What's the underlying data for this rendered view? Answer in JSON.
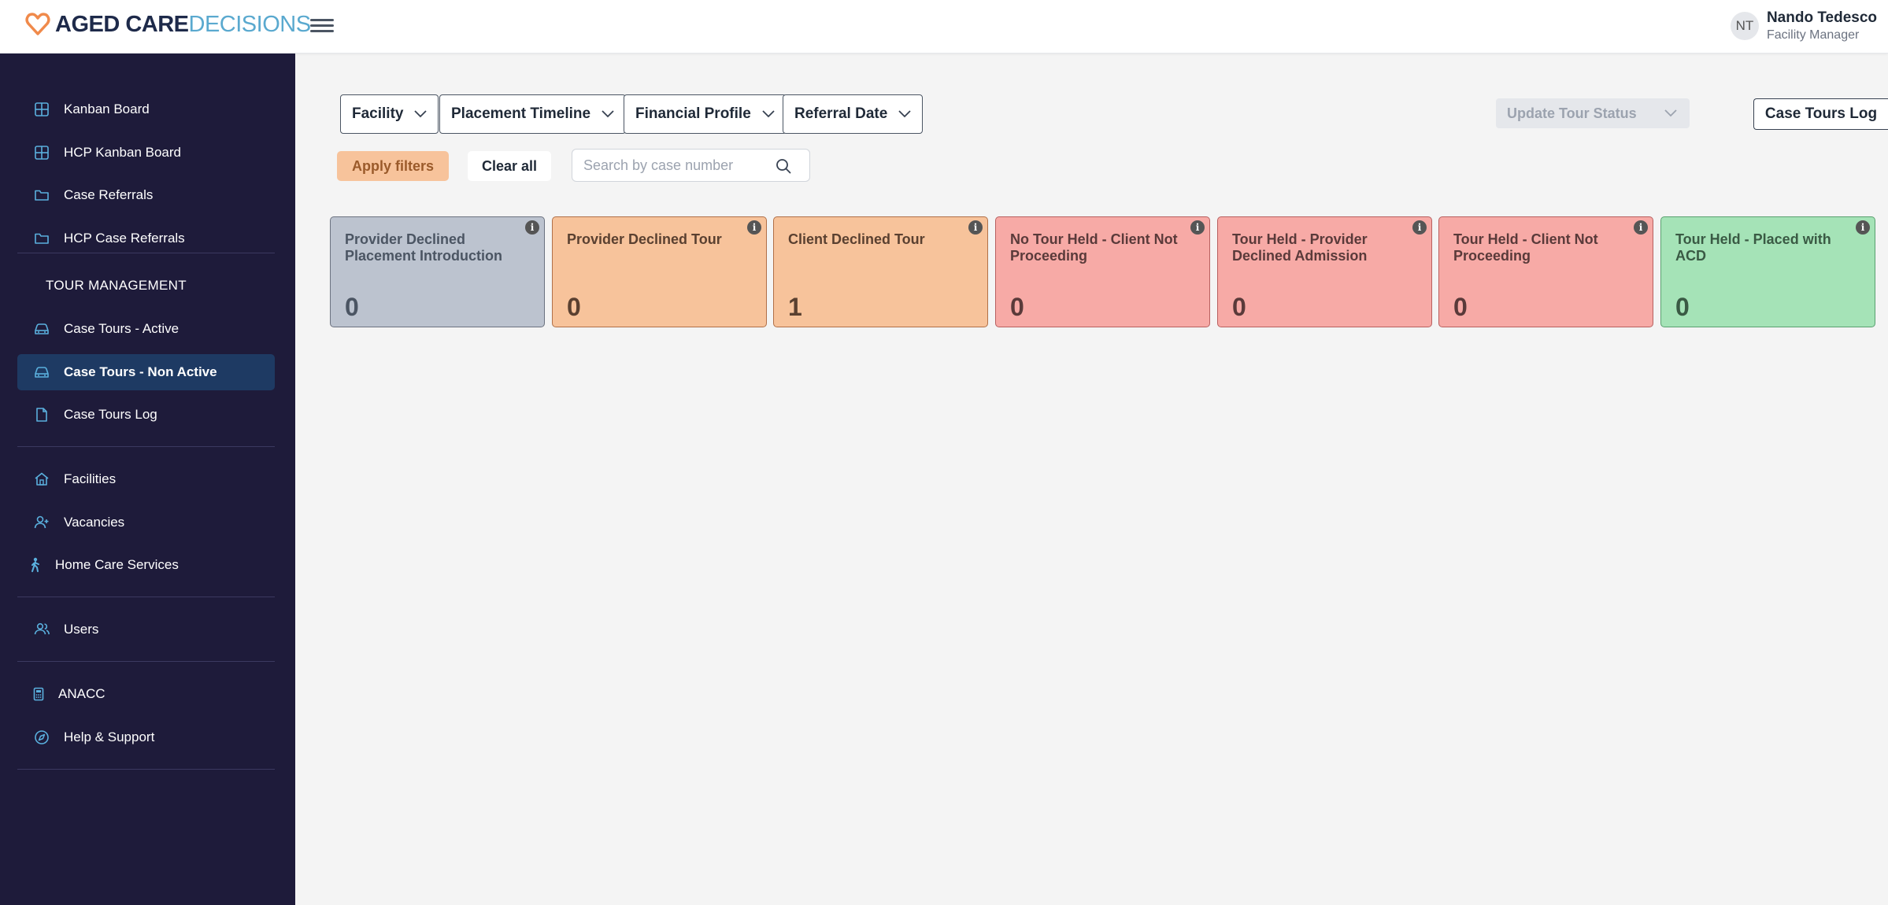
{
  "brand": {
    "part1": "AGED CARE",
    "part2": "DECISIONS",
    "heart_color": "#f08a4b"
  },
  "user": {
    "initials": "NT",
    "name": "Nando Tedesco",
    "role": "Facility Manager"
  },
  "sidebar": {
    "items": [
      {
        "label": "Kanban Board",
        "icon": "grid-icon"
      },
      {
        "label": "HCP Kanban Board",
        "icon": "grid-icon"
      },
      {
        "label": "Case Referrals",
        "icon": "folder-icon"
      },
      {
        "label": "HCP Case Referrals",
        "icon": "folder-icon"
      },
      {
        "label": "Case Tours - Active",
        "icon": "car-icon"
      },
      {
        "label": "Case Tours - Non Active",
        "icon": "car-icon",
        "active": true
      },
      {
        "label": "Case Tours Log",
        "icon": "document-icon"
      },
      {
        "label": "Facilities",
        "icon": "home-icon"
      },
      {
        "label": "Vacancies",
        "icon": "user-plus-icon"
      },
      {
        "label": "Home Care Services",
        "icon": "walking-person-icon"
      },
      {
        "label": "Users",
        "icon": "users-icon"
      },
      {
        "label": "ANACC",
        "icon": "calculator-icon"
      },
      {
        "label": "Help & Support",
        "icon": "compass-icon"
      }
    ],
    "section_title": "TOUR MANAGEMENT"
  },
  "filters": {
    "facility": "Facility",
    "placement_timeline": "Placement Timeline",
    "financial_profile": "Financial Profile",
    "referral_date": "Referral Date",
    "apply": "Apply filters",
    "clear": "Clear all",
    "search_placeholder": "Search by case number"
  },
  "actions": {
    "update_status": "Update Tour Status",
    "tours_log": "Case Tours Log"
  },
  "cards": [
    {
      "title": "Provider Declined Placement Introduction",
      "count": "0",
      "bg": "#bcc3cf",
      "border": "#6b7280",
      "color": "#4b5563"
    },
    {
      "title": "Provider Declined Tour",
      "count": "0",
      "bg": "#f7c39b",
      "border": "#b07048",
      "color": "#5a4030"
    },
    {
      "title": "Client Declined Tour",
      "count": "1",
      "bg": "#f7c39b",
      "border": "#b07048",
      "color": "#5a4030"
    },
    {
      "title": "No Tour Held - Client Not Proceeding",
      "count": "0",
      "bg": "#f7aaa6",
      "border": "#b86060",
      "color": "#5a3a3a"
    },
    {
      "title": "Tour Held - Provider Declined Admission",
      "count": "0",
      "bg": "#f7aaa6",
      "border": "#b86060",
      "color": "#5a3a3a"
    },
    {
      "title": "Tour Held - Client Not Proceeding",
      "count": "0",
      "bg": "#f7aaa6",
      "border": "#b86060",
      "color": "#5a3a3a"
    },
    {
      "title": "Tour Held - Placed with ACD",
      "count": "0",
      "bg": "#a5e3b7",
      "border": "#5aa070",
      "color": "#3a5a44"
    }
  ]
}
